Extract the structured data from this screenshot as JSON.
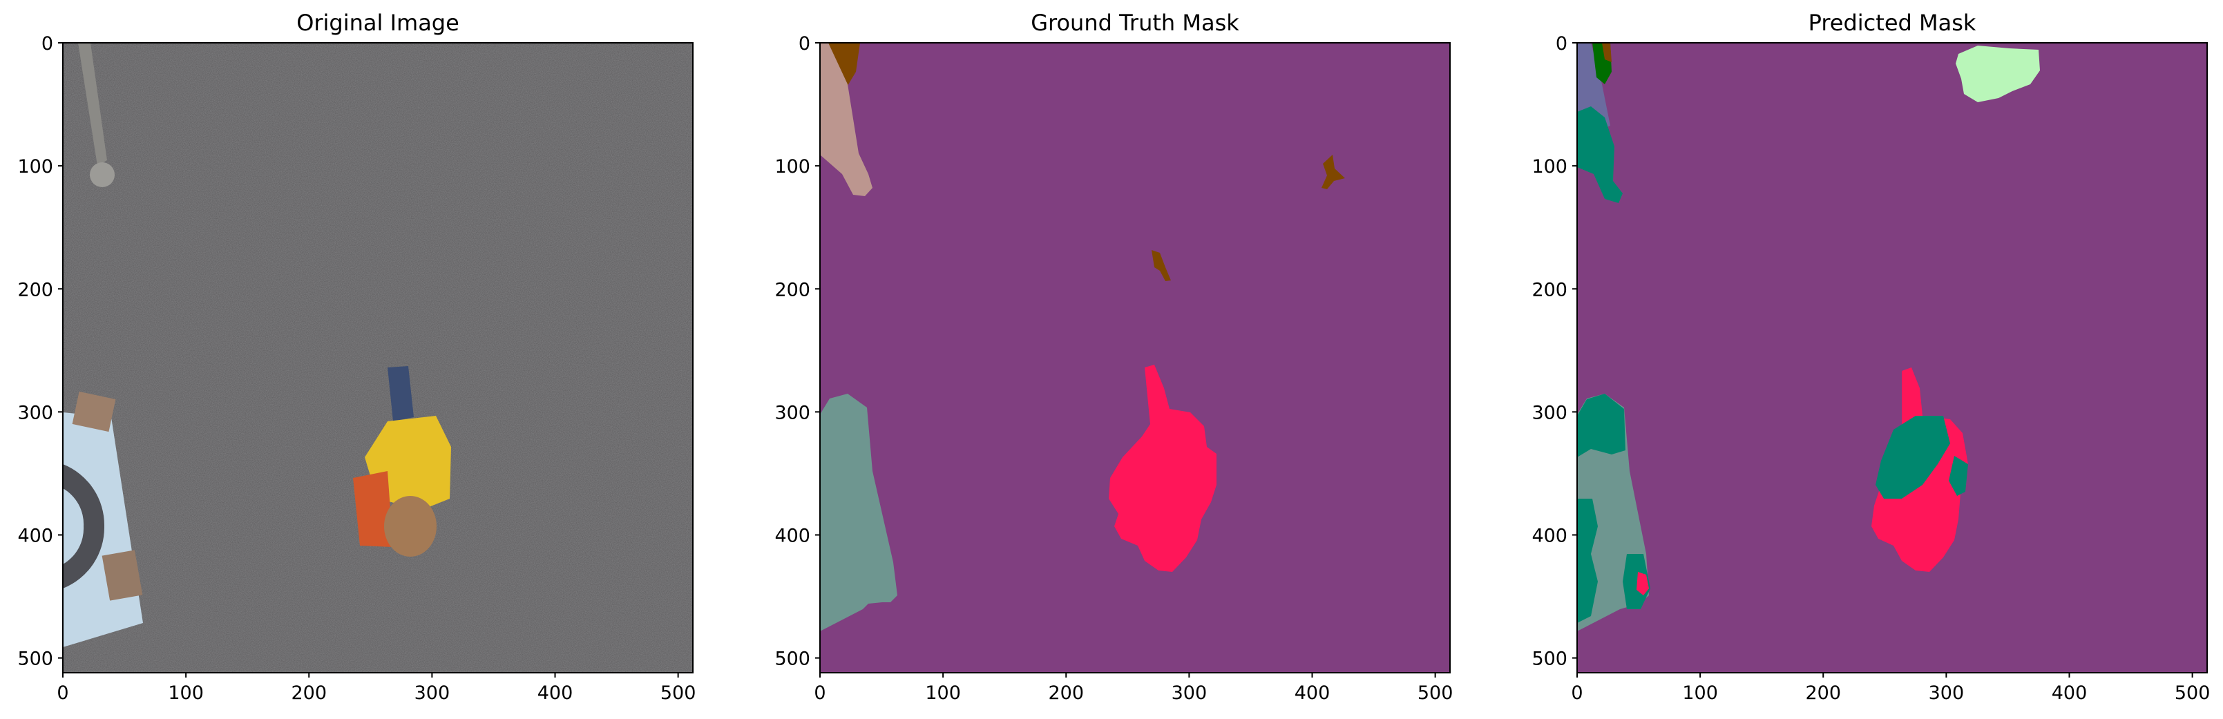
{
  "chart_data": [
    {
      "type": "image",
      "title": "Original Image",
      "xticks": [
        "0",
        "100",
        "200",
        "300",
        "400",
        "500"
      ],
      "yticks": [
        "0",
        "100",
        "200",
        "300",
        "400",
        "500"
      ],
      "xlim": [
        0,
        512
      ],
      "ylim": [
        512,
        0
      ]
    },
    {
      "type": "image",
      "title": "Ground Truth Mask",
      "xticks": [
        "0",
        "100",
        "200",
        "300",
        "400",
        "500"
      ],
      "yticks": [
        "0",
        "100",
        "200",
        "300",
        "400",
        "500"
      ],
      "xlim": [
        0,
        512
      ],
      "ylim": [
        512,
        0
      ]
    },
    {
      "type": "image",
      "title": "Predicted Mask",
      "xticks": [
        "0",
        "100",
        "200",
        "300",
        "400",
        "500"
      ],
      "yticks": [
        "0",
        "100",
        "200",
        "300",
        "400",
        "500"
      ],
      "xlim": [
        0,
        512
      ],
      "ylim": [
        512,
        0
      ]
    }
  ],
  "colors": {
    "background_class": "#803f80",
    "person": "#ff1659",
    "vegetation": "#00876e",
    "ground_patch": "#6e9690",
    "pole": "#bc968f",
    "dirt": "#7f4700",
    "grass": "#b9f6b9",
    "object_blue": "#6b6b9f",
    "tree": "#006d00",
    "asphalt": "#5b5a5c"
  }
}
